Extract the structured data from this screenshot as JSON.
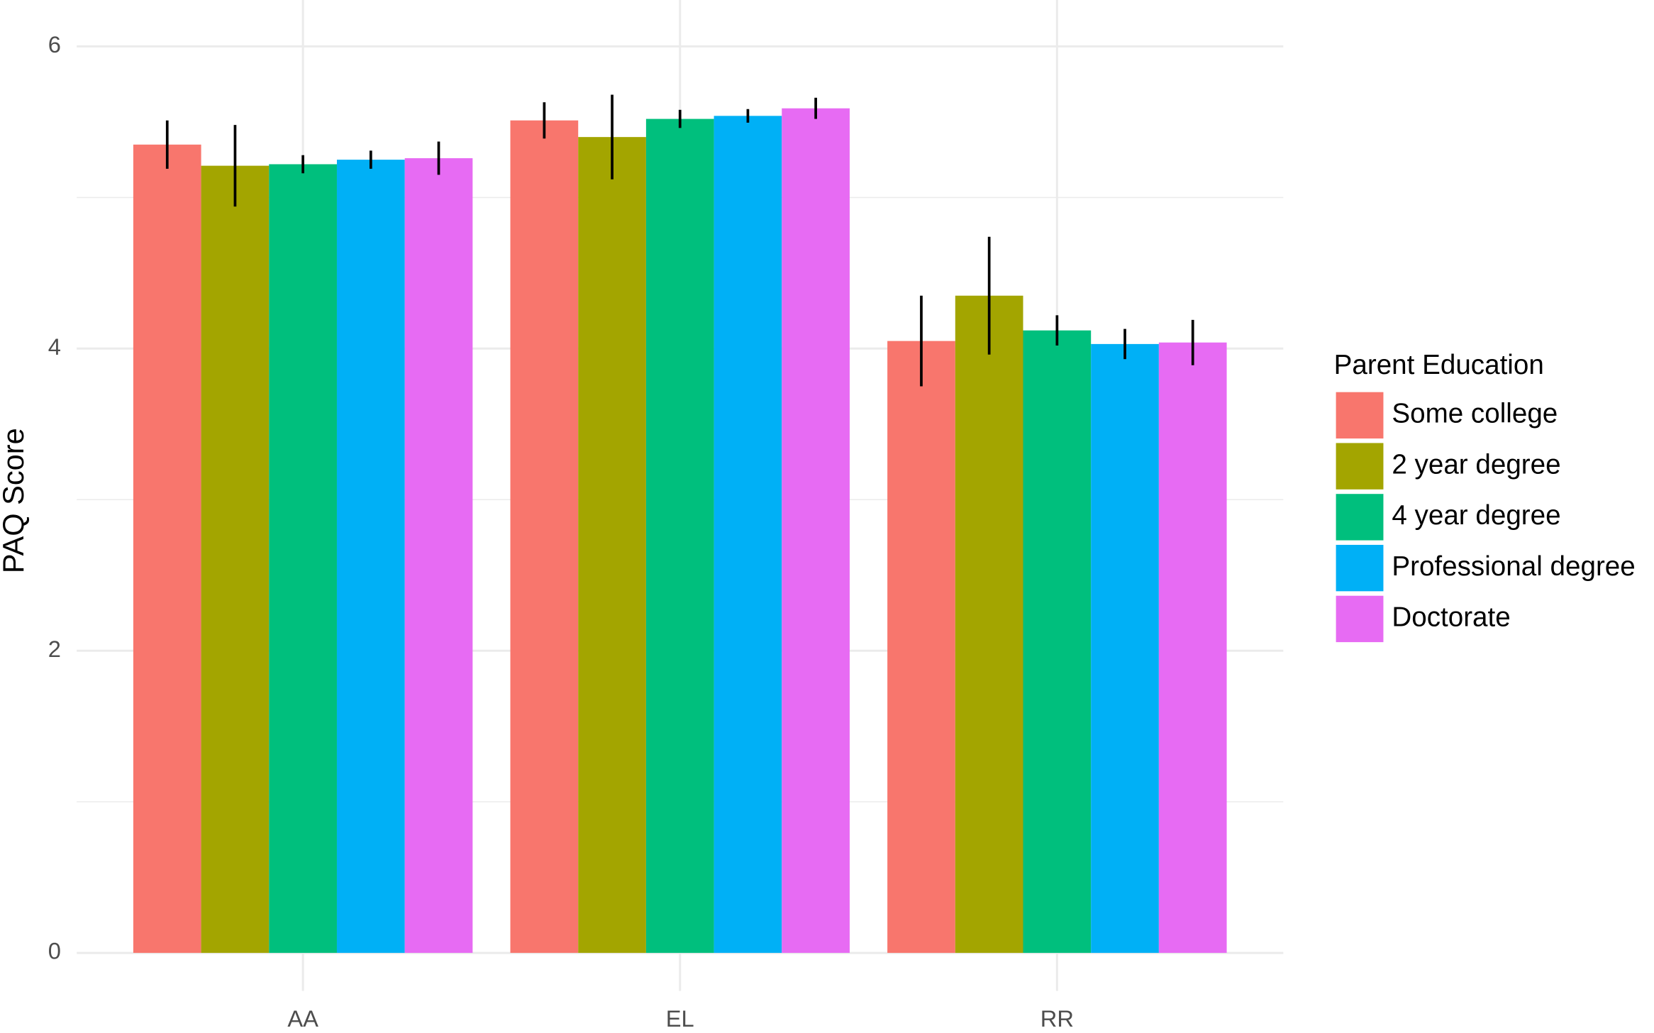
{
  "chart_data": {
    "type": "bar",
    "y_label": "PAQ Score",
    "legend_title": "Parent Education",
    "legend": "right",
    "grid": true,
    "categories": [
      "AA",
      "EL",
      "RR"
    ],
    "ylim": [
      0,
      6.3
    ],
    "yticks": [
      0,
      2,
      4,
      6
    ],
    "series": [
      {
        "name": "Some college",
        "color": "#f8766d",
        "values": [
          5.35,
          5.51,
          4.05
        ],
        "errors": [
          0.16,
          0.12,
          0.3
        ]
      },
      {
        "name": "2 year degree",
        "color": "#a3a500",
        "values": [
          5.21,
          5.4,
          4.35
        ],
        "errors": [
          0.27,
          0.28,
          0.39
        ]
      },
      {
        "name": "4 year degree",
        "color": "#00bf7d",
        "values": [
          5.22,
          5.52,
          4.12
        ],
        "errors": [
          0.06,
          0.06,
          0.1
        ]
      },
      {
        "name": "Professional degree",
        "color": "#00b0f6",
        "values": [
          5.25,
          5.54,
          4.03
        ],
        "errors": [
          0.06,
          0.045,
          0.1
        ]
      },
      {
        "name": "Doctorate",
        "color": "#e76bf3",
        "values": [
          5.26,
          5.59,
          4.04
        ],
        "errors": [
          0.11,
          0.07,
          0.15
        ]
      }
    ]
  }
}
